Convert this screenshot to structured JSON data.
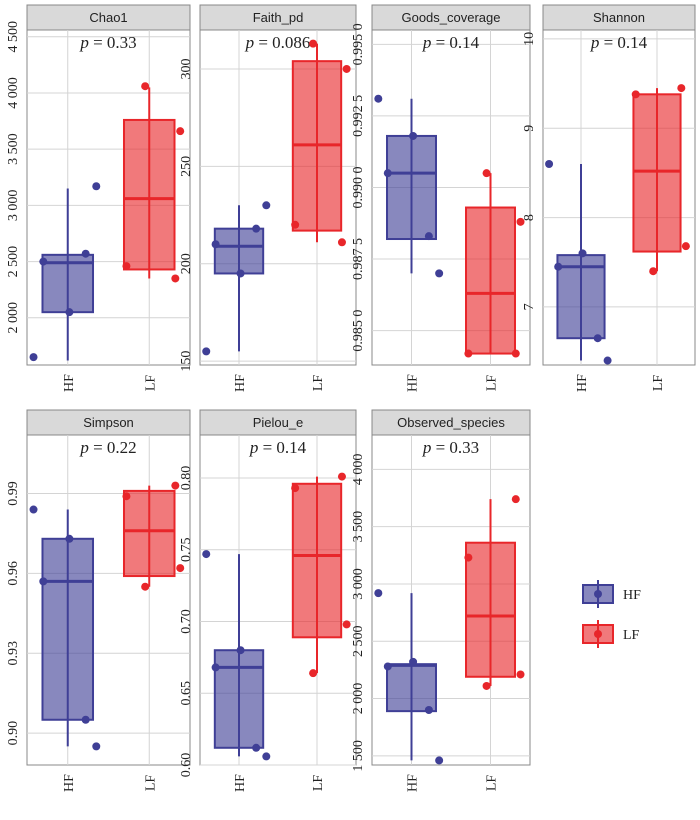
{
  "chart_data": [
    {
      "type": "box",
      "title": "Chao1",
      "annotation": {
        "symbol": "p",
        "text": " = 0.33"
      },
      "categories": [
        "HF",
        "LF"
      ],
      "ylim": [
        1580,
        4560
      ],
      "yticks": [
        {
          "value": 2000,
          "label": "2 000"
        },
        {
          "value": 2500,
          "label": "2 500"
        },
        {
          "value": 3000,
          "label": "3 000"
        },
        {
          "value": 3500,
          "label": "3 500"
        },
        {
          "value": 4000,
          "label": "4 000"
        },
        {
          "value": 4500,
          "label": "4 500"
        }
      ],
      "series": [
        {
          "name": "HF",
          "color": "#3f3f96",
          "min": 1620,
          "q1": 2050,
          "median": 2490,
          "q3": 2560,
          "max": 3150,
          "points": [
            1650,
            2050,
            2500,
            2570,
            3170
          ]
        },
        {
          "name": "LF",
          "color": "#e8262a",
          "min": 2350,
          "q1": 2430,
          "median": 3060,
          "q3": 3760,
          "max": 4050,
          "points": [
            2350,
            2460,
            3660,
            4060
          ]
        }
      ]
    },
    {
      "type": "box",
      "title": "Faith_pd",
      "annotation": {
        "symbol": "p",
        "text": " = 0.086"
      },
      "categories": [
        "HF",
        "LF"
      ],
      "ylim": [
        148,
        320
      ],
      "yticks": [
        150,
        200,
        250,
        300
      ],
      "series": [
        {
          "name": "HF",
          "color": "#3f3f96",
          "min": 155,
          "q1": 195,
          "median": 209,
          "q3": 218,
          "max": 230,
          "points": [
            155,
            195,
            210,
            218,
            230
          ]
        },
        {
          "name": "LF",
          "color": "#e8262a",
          "min": 211,
          "q1": 217,
          "median": 261,
          "q3": 304,
          "max": 313,
          "points": [
            211,
            220,
            300,
            313
          ]
        }
      ]
    },
    {
      "type": "box",
      "title": "Goods_coverage",
      "annotation": {
        "symbol": "p",
        "text": " = 0.14"
      },
      "categories": [
        "HF",
        "LF"
      ],
      "ylim": [
        0.9838,
        0.9955
      ],
      "yticks": [
        {
          "value": 0.985,
          "label": "0.985 0"
        },
        {
          "value": 0.9875,
          "label": "0.987 5"
        },
        {
          "value": 0.99,
          "label": "0.990 0"
        },
        {
          "value": 0.9925,
          "label": "0.992 5"
        },
        {
          "value": 0.995,
          "label": "0.995 0"
        }
      ],
      "series": [
        {
          "name": "HF",
          "color": "#3f3f96",
          "min": 0.987,
          "q1": 0.9882,
          "median": 0.9905,
          "q3": 0.9918,
          "max": 0.9931,
          "points": [
            0.9931,
            0.9918,
            0.9905,
            0.9883,
            0.987
          ]
        },
        {
          "name": "LF",
          "color": "#e8262a",
          "min": 0.9842,
          "q1": 0.9842,
          "median": 0.9863,
          "q3": 0.9893,
          "max": 0.9905,
          "points": [
            0.9842,
            0.9842,
            0.9888,
            0.9905
          ]
        }
      ]
    },
    {
      "type": "box",
      "title": "Shannon",
      "annotation": {
        "symbol": "p",
        "text": " = 0.14"
      },
      "categories": [
        "HF",
        "LF"
      ],
      "ylim": [
        6.35,
        10.1
      ],
      "yticks": [
        7,
        8,
        9,
        10
      ],
      "series": [
        {
          "name": "HF",
          "color": "#3f3f96",
          "min": 6.4,
          "q1": 6.65,
          "median": 7.45,
          "q3": 7.58,
          "max": 8.6,
          "points": [
            8.6,
            7.6,
            7.45,
            6.65,
            6.4
          ]
        },
        {
          "name": "LF",
          "color": "#e8262a",
          "min": 7.4,
          "q1": 7.62,
          "median": 8.52,
          "q3": 9.38,
          "max": 9.45,
          "points": [
            9.45,
            9.38,
            7.68,
            7.4
          ]
        }
      ]
    },
    {
      "type": "box",
      "title": "Simpson",
      "annotation": {
        "symbol": "p",
        "text": " = 0.22"
      },
      "categories": [
        "HF",
        "LF"
      ],
      "ylim": [
        0.888,
        1.012
      ],
      "yticks": [
        {
          "value": 0.9,
          "label": "0.90"
        },
        0.93,
        0.96,
        0.99
      ],
      "series": [
        {
          "name": "HF",
          "color": "#3f3f96",
          "min": 0.895,
          "q1": 0.905,
          "median": 0.957,
          "q3": 0.973,
          "max": 0.984,
          "points": [
            0.984,
            0.973,
            0.957,
            0.905,
            0.895
          ]
        },
        {
          "name": "LF",
          "color": "#e8262a",
          "min": 0.955,
          "q1": 0.959,
          "median": 0.976,
          "q3": 0.991,
          "max": 0.993,
          "points": [
            0.993,
            0.989,
            0.962,
            0.955
          ]
        }
      ]
    },
    {
      "type": "box",
      "title": "Pielou_e",
      "annotation": {
        "symbol": "p",
        "text": " = 0.14"
      },
      "categories": [
        "HF",
        "LF"
      ],
      "ylim": [
        0.6,
        0.83
      ],
      "yticks": [
        {
          "value": 0.6,
          "label": "0.60"
        },
        0.65,
        {
          "value": 0.7,
          "label": "0.70"
        },
        0.75,
        {
          "value": 0.8,
          "label": "0.80"
        }
      ],
      "series": [
        {
          "name": "HF",
          "color": "#3f3f96",
          "min": 0.606,
          "q1": 0.612,
          "median": 0.668,
          "q3": 0.68,
          "max": 0.747,
          "points": [
            0.747,
            0.68,
            0.668,
            0.612,
            0.606
          ]
        },
        {
          "name": "LF",
          "color": "#e8262a",
          "min": 0.664,
          "q1": 0.689,
          "median": 0.746,
          "q3": 0.796,
          "max": 0.801,
          "points": [
            0.801,
            0.793,
            0.698,
            0.664
          ]
        }
      ]
    },
    {
      "type": "box",
      "title": "Observed_species",
      "annotation": {
        "symbol": "p",
        "text": " = 0.33"
      },
      "categories": [
        "HF",
        "LF"
      ],
      "ylim": [
        1420,
        4300
      ],
      "yticks": [
        {
          "value": 1500,
          "label": "1 500"
        },
        {
          "value": 2000,
          "label": "2 000"
        },
        {
          "value": 2500,
          "label": "2 500"
        },
        {
          "value": 3000,
          "label": "3 000"
        },
        {
          "value": 3500,
          "label": "3 500"
        },
        {
          "value": 4000,
          "label": "4 000"
        }
      ],
      "series": [
        {
          "name": "HF",
          "color": "#3f3f96",
          "min": 1460,
          "q1": 1890,
          "median": 2290,
          "q3": 2300,
          "max": 2920,
          "points": [
            2920,
            2320,
            2280,
            1900,
            1460
          ]
        },
        {
          "name": "LF",
          "color": "#e8262a",
          "min": 2110,
          "q1": 2190,
          "median": 2720,
          "q3": 3360,
          "max": 3740,
          "points": [
            3740,
            3230,
            2210,
            2110
          ]
        }
      ]
    }
  ]
}
